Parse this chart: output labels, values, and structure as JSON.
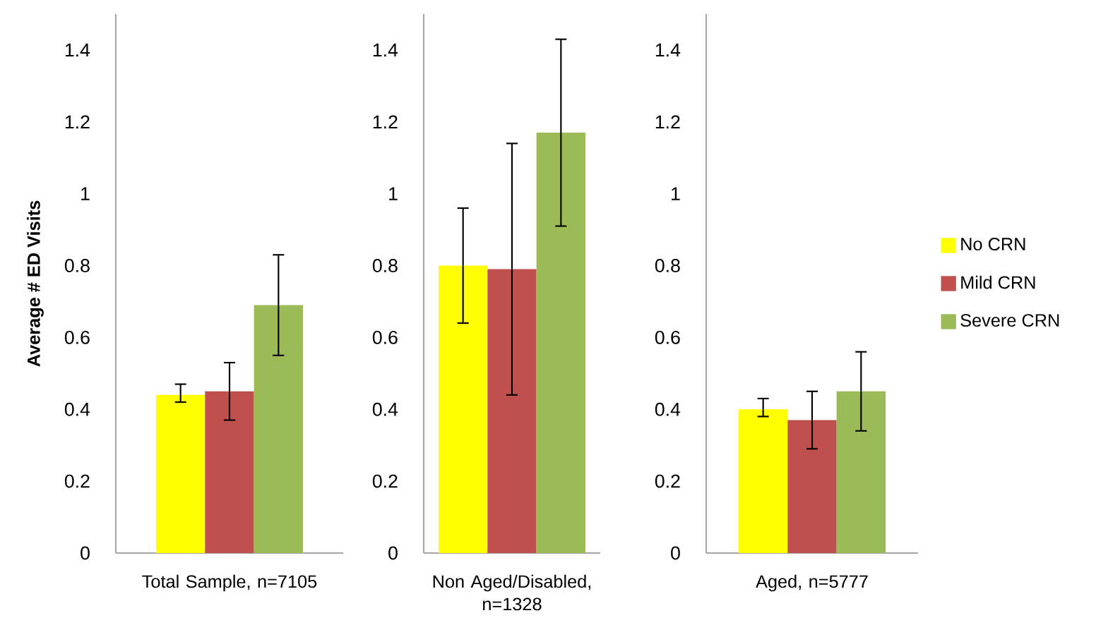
{
  "chart_data": [
    {
      "type": "bar",
      "ylabel": "Average # ED Visits",
      "categories": [
        "Total Sample, n=7105"
      ],
      "ylim": [
        0,
        1.5
      ],
      "yticks": [
        0,
        0.2,
        0.4,
        0.6,
        0.8,
        1,
        1.2,
        1.4
      ],
      "series": [
        {
          "color": "#ffff00",
          "values": [
            0.44
          ],
          "errors": [
            [
              0.42,
              0.47
            ]
          ]
        },
        {
          "color": "#c0504d",
          "values": [
            0.45
          ],
          "errors": [
            [
              0.37,
              0.53
            ]
          ]
        },
        {
          "color": "#9bbb59",
          "values": [
            0.69
          ],
          "errors": [
            [
              0.55,
              0.83
            ]
          ]
        }
      ]
    },
    {
      "type": "bar",
      "categories": [
        "Non Aged/Disabled, n=1328"
      ],
      "ylim": [
        0,
        1.5
      ],
      "yticks": [
        0,
        0.2,
        0.4,
        0.6,
        0.8,
        1,
        1.2,
        1.4
      ],
      "series": [
        {
          "color": "#ffff00",
          "values": [
            0.8
          ],
          "errors": [
            [
              0.64,
              0.96
            ]
          ]
        },
        {
          "color": "#c0504d",
          "values": [
            0.79
          ],
          "errors": [
            [
              0.44,
              1.14
            ]
          ]
        },
        {
          "color": "#9bbb59",
          "values": [
            1.17
          ],
          "errors": [
            [
              0.91,
              1.43
            ]
          ]
        }
      ]
    },
    {
      "type": "bar",
      "categories": [
        "Aged, n=5777"
      ],
      "ylim": [
        0,
        1.5
      ],
      "yticks": [
        0,
        0.2,
        0.4,
        0.6,
        0.8,
        1,
        1.2,
        1.4
      ],
      "legend": "right",
      "series": [
        {
          "name": "No CRN",
          "color": "#ffff00",
          "values": [
            0.4
          ],
          "errors": [
            [
              0.38,
              0.43
            ]
          ]
        },
        {
          "name": "Mild CRN",
          "color": "#c0504d",
          "values": [
            0.37
          ],
          "errors": [
            [
              0.29,
              0.45
            ]
          ]
        },
        {
          "name": "Severe CRN",
          "color": "#9bbb59",
          "values": [
            0.45
          ],
          "errors": [
            [
              0.34,
              0.56
            ]
          ]
        }
      ]
    }
  ]
}
